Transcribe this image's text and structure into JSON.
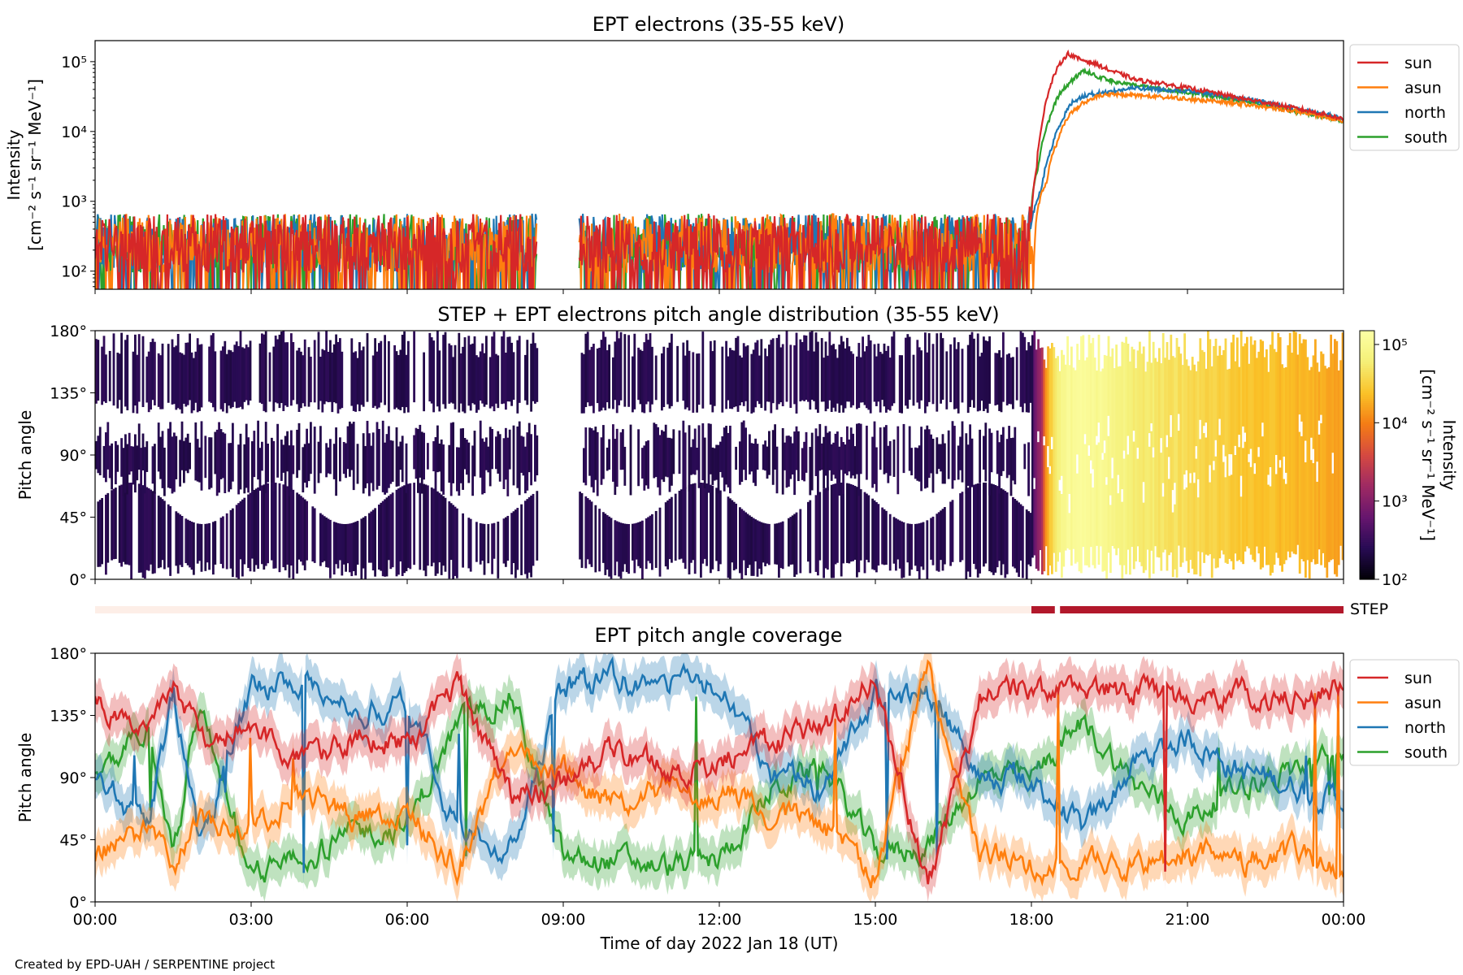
{
  "credit": "Created by EPD-UAH / SERPENTINE project",
  "colors": {
    "sun": "#d62728",
    "asun": "#ff7f0e",
    "north": "#1f77b4",
    "south": "#2ca02c",
    "step": "#b2182b",
    "step_off": "#fdeee7"
  },
  "chart_data": [
    {
      "type": "line",
      "title": "EPT electrons (35-55 keV)",
      "ylabel": "Intensity",
      "ylabel_units": "[cm⁻² s⁻¹ sr⁻¹ MeV⁻¹]",
      "yscale": "log",
      "ylim": [
        55,
        200000
      ],
      "yticks": [
        {
          "value": 100,
          "label": "10²"
        },
        {
          "value": 1000,
          "label": "10³"
        },
        {
          "value": 10000,
          "label": "10⁴"
        },
        {
          "value": 100000,
          "label": "10⁵"
        }
      ],
      "xlim": [
        0,
        24
      ],
      "legend": "outside-right",
      "data_gap": [
        8.5,
        9.3
      ],
      "series": [
        {
          "name": "sun",
          "x": [
            0,
            2,
            4,
            6,
            8.45,
            9.35,
            12,
            15,
            17.95,
            18.0,
            18.1,
            18.2,
            18.35,
            18.5,
            18.7,
            18.9,
            19.2,
            19.5,
            20,
            21,
            22,
            23,
            24
          ],
          "y": [
            250,
            250,
            250,
            250,
            250,
            250,
            250,
            250,
            250,
            600,
            3000,
            12000,
            40000,
            80000,
            130000,
            110000,
            95000,
            75000,
            55000,
            42000,
            30000,
            22000,
            15000
          ]
        },
        {
          "name": "asun",
          "x": [
            0,
            2,
            4,
            6,
            8.45,
            9.35,
            12,
            15,
            18.05,
            18.1,
            18.3,
            18.5,
            18.7,
            19.0,
            19.3,
            19.6,
            20,
            21,
            22,
            23,
            24
          ],
          "y": [
            250,
            250,
            250,
            250,
            250,
            250,
            250,
            250,
            250,
            600,
            2000,
            7000,
            16000,
            26000,
            32000,
            34000,
            33000,
            29000,
            25000,
            20000,
            14000
          ]
        },
        {
          "name": "north",
          "x": [
            0,
            2,
            4,
            6,
            8.45,
            9.35,
            12,
            15,
            17.95,
            18.0,
            18.2,
            18.4,
            18.6,
            18.8,
            19.1,
            19.4,
            19.8,
            20,
            21,
            22,
            23,
            24
          ],
          "y": [
            250,
            250,
            250,
            250,
            250,
            250,
            250,
            250,
            250,
            500,
            1500,
            6000,
            15000,
            27000,
            34000,
            36000,
            40000,
            42000,
            38000,
            30000,
            22000,
            15000
          ]
        },
        {
          "name": "south",
          "x": [
            0,
            2,
            4,
            6,
            8.45,
            9.35,
            12,
            15,
            17.95,
            18.0,
            18.15,
            18.35,
            18.55,
            18.8,
            19.0,
            19.3,
            19.6,
            20,
            21,
            22,
            23,
            24
          ],
          "y": [
            250,
            250,
            250,
            250,
            250,
            250,
            250,
            250,
            250,
            800,
            3500,
            15000,
            35000,
            55000,
            75000,
            60000,
            52000,
            45000,
            36000,
            28000,
            20000,
            14000
          ]
        }
      ]
    },
    {
      "type": "heatmap",
      "title": "STEP + EPT electrons pitch angle distribution (35-55 keV)",
      "ylabel": "Pitch angle",
      "ylim": [
        0,
        180
      ],
      "yticks": [
        "0°",
        "45°",
        "90°",
        "135°",
        "180°"
      ],
      "xlim": [
        0,
        24
      ],
      "data_gap": [
        8.5,
        9.3
      ],
      "colorbar": {
        "label": "Intensity",
        "units": "[cm⁻² s⁻¹ sr⁻¹ MeV⁻¹]",
        "scale": "log",
        "range": [
          100,
          150000
        ],
        "ticks": [
          {
            "value": 100,
            "label": "10²"
          },
          {
            "value": 1000,
            "label": "10³"
          },
          {
            "value": 10000,
            "label": "10⁴"
          },
          {
            "value": 100000,
            "label": "10⁵"
          }
        ],
        "colormap": "inferno"
      },
      "intensity_profile": {
        "x": [
          0,
          8.5,
          9.3,
          18.0,
          18.2,
          18.4,
          18.6,
          19.0,
          19.5,
          20,
          21,
          22,
          24
        ],
        "value": [
          250,
          250,
          250,
          250,
          2000,
          40000,
          100000,
          120000,
          90000,
          60000,
          40000,
          28000,
          15000
        ]
      }
    },
    {
      "type": "bar",
      "label": "STEP",
      "segments": [
        {
          "start": 0,
          "end": 18.0,
          "state": "off"
        },
        {
          "start": 18.0,
          "end": 18.45,
          "state": "on"
        },
        {
          "start": 18.55,
          "end": 24,
          "state": "on"
        }
      ]
    },
    {
      "type": "line",
      "title": "EPT pitch angle coverage",
      "ylabel": "Pitch angle",
      "xlabel": "Time of day 2022 Jan 18 (UT)",
      "ylim": [
        0,
        180
      ],
      "yticks": [
        "0°",
        "45°",
        "90°",
        "135°",
        "180°"
      ],
      "xlim": [
        0,
        24
      ],
      "xticks": [
        "00:00",
        "03:00",
        "06:00",
        "09:00",
        "12:00",
        "15:00",
        "18:00",
        "21:00",
        "00:00"
      ],
      "legend": "outside-right",
      "series": [
        {
          "name": "sun",
          "x": [
            0,
            1,
            1.5,
            2,
            3,
            4,
            5,
            6,
            7,
            8,
            9,
            10,
            11,
            12,
            13,
            14,
            15,
            16,
            17,
            18,
            19,
            20,
            21,
            22,
            23,
            24
          ],
          "y": [
            145,
            130,
            155,
            120,
            125,
            100,
            120,
            115,
            155,
            75,
            85,
            110,
            95,
            100,
            115,
            125,
            160,
            10,
            145,
            155,
            150,
            155,
            145,
            150,
            145,
            155
          ]
        },
        {
          "name": "asun",
          "x": [
            0,
            1,
            1.5,
            2,
            3,
            4,
            5,
            6,
            7,
            8,
            9,
            10,
            11,
            12,
            13,
            14,
            15,
            16,
            17,
            18,
            19,
            20,
            21,
            22,
            23,
            24
          ],
          "y": [
            35,
            50,
            25,
            60,
            55,
            80,
            60,
            65,
            25,
            115,
            95,
            70,
            85,
            80,
            65,
            55,
            20,
            170,
            35,
            25,
            30,
            25,
            35,
            30,
            35,
            25
          ]
        },
        {
          "name": "north",
          "x": [
            0,
            1,
            1.5,
            2,
            3,
            4,
            5,
            6,
            7,
            8,
            9,
            10,
            11,
            12,
            13,
            14,
            15,
            16,
            17,
            18,
            19,
            20,
            21,
            22,
            23,
            24
          ],
          "y": [
            90,
            55,
            150,
            40,
            155,
            160,
            140,
            140,
            50,
            40,
            155,
            160,
            160,
            155,
            95,
            80,
            150,
            150,
            90,
            90,
            50,
            100,
            120,
            95,
            85,
            75
          ]
        },
        {
          "name": "south",
          "x": [
            0,
            1,
            1.5,
            2,
            3,
            4,
            5,
            6,
            7,
            8,
            9,
            10,
            11,
            12,
            13,
            14,
            15,
            16,
            17,
            18,
            19,
            20,
            21,
            22,
            23,
            24
          ],
          "y": [
            90,
            125,
            30,
            140,
            25,
            30,
            50,
            55,
            130,
            150,
            30,
            30,
            25,
            30,
            80,
            100,
            35,
            40,
            90,
            90,
            130,
            85,
            60,
            85,
            95,
            105
          ]
        }
      ]
    }
  ]
}
